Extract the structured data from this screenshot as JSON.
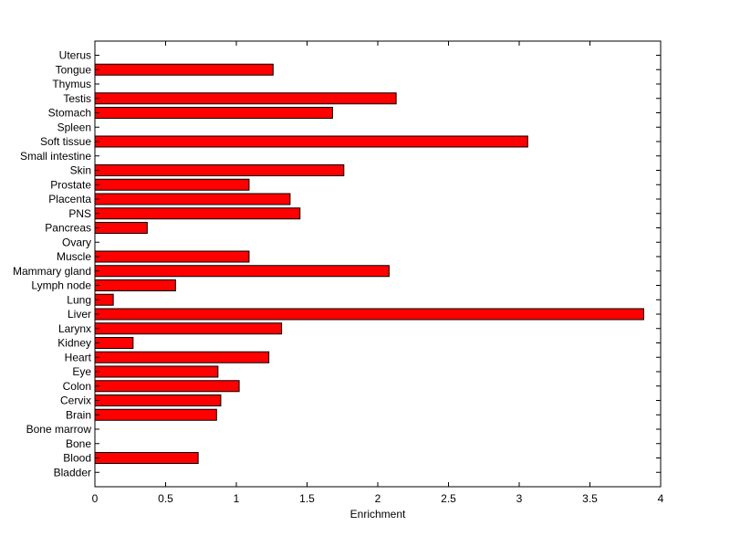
{
  "chart_data": {
    "type": "bar",
    "orientation": "horizontal",
    "xlabel": "Enrichment",
    "ylabel": "",
    "title": "",
    "xlim": [
      0,
      4
    ],
    "x_ticks": [
      "0",
      "0.5",
      "1",
      "1.5",
      "2",
      "2.5",
      "3",
      "3.5",
      "4"
    ],
    "grid": false,
    "legend": "none",
    "bar_color": "#ff0000",
    "categories": [
      "Uterus",
      "Tongue",
      "Thymus",
      "Testis",
      "Stomach",
      "Spleen",
      "Soft tissue",
      "Small intestine",
      "Skin",
      "Prostate",
      "Placenta",
      "PNS",
      "Pancreas",
      "Ovary",
      "Muscle",
      "Mammary gland",
      "Lymph node",
      "Lung",
      "Liver",
      "Larynx",
      "Kidney",
      "Heart",
      "Eye",
      "Colon",
      "Cervix",
      "Brain",
      "Bone marrow",
      "Bone",
      "Blood",
      "Bladder"
    ],
    "values": [
      0,
      1.26,
      0,
      2.13,
      1.68,
      0,
      3.06,
      0,
      1.76,
      1.09,
      1.38,
      1.45,
      0.37,
      0,
      1.09,
      2.08,
      0.57,
      0.13,
      3.88,
      1.32,
      0.27,
      1.23,
      0.87,
      1.02,
      0.89,
      0.86,
      0,
      0,
      0.73,
      0
    ]
  }
}
